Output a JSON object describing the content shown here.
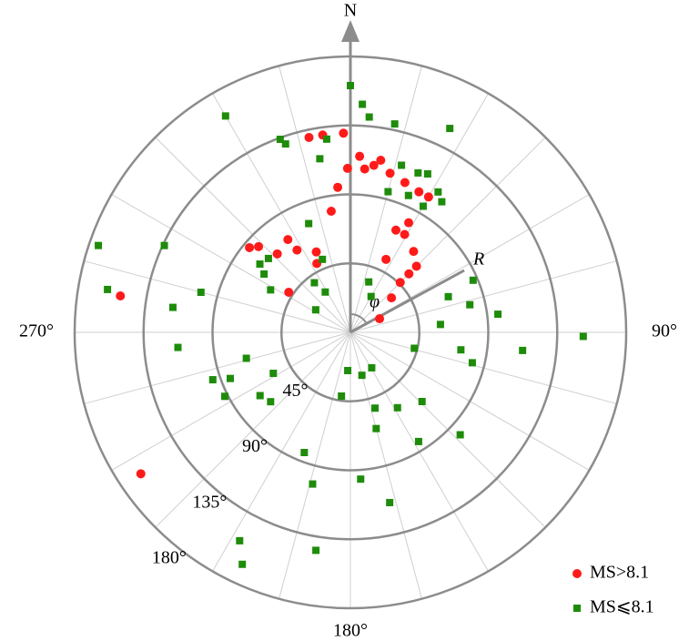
{
  "chart_data": {
    "type": "polar-scatter",
    "rlim": [
      0,
      180
    ],
    "rticks": [
      {
        "value": 45,
        "label": "45°"
      },
      {
        "value": 90,
        "label": "90°"
      },
      {
        "value": 135,
        "label": "135°"
      },
      {
        "value": 180,
        "label": "180°"
      }
    ],
    "thetaticks": [
      {
        "value": 0,
        "label": "N"
      },
      {
        "value": 90,
        "label": "90°"
      },
      {
        "value": 180,
        "label": "180°"
      },
      {
        "value": 270,
        "label": "270°"
      }
    ],
    "annotations": [
      "R",
      "φ"
    ],
    "legend": "bottom-right",
    "series": [
      {
        "name": "MS>8.1",
        "color": "#ff1a1a",
        "marker": "circle",
        "theta": [
          279,
          236,
          348,
          352,
          358,
          3,
          8,
          14,
          20,
          26,
          30,
          5,
          10,
          359,
          355,
          351,
          24,
          28,
          29,
          38,
          45,
          45,
          26,
          45,
          50,
          65,
          326,
          327,
          337,
          334,
          317,
          310,
          313,
          303
        ],
        "r": [
          152,
          165,
          130,
          130,
          130,
          115,
          110,
          107,
          104,
          102,
          102,
          107,
          114,
          107,
          95,
          80,
          73,
          81,
          73,
          67,
          61,
          54,
          53,
          46,
          35,
          21,
          73,
          64,
          57,
          50,
          70,
          86,
          82,
          48
        ]
      },
      {
        "name": "MS⩽8.1",
        "color": "#1e8c0a",
        "marker": "square",
        "theta": [
          0,
          3,
          5,
          12,
          26,
          330,
          340,
          341,
          353,
          350,
          289,
          295,
          280,
          285,
          278,
          265,
          251,
          256,
          249,
          243,
          235,
          229,
          242,
          201,
          194,
          176,
          167,
          189,
          208,
          205,
          188,
          184,
          165,
          149,
          162,
          165,
          148,
          134,
          148,
          133,
          99,
          104,
          96,
          91,
          83,
          77,
          85,
          104,
          70,
          67,
          20,
          30,
          328,
          303,
          324,
          339,
          339,
          298,
          304,
          312,
          307,
          26,
          32,
          35,
          23,
          30,
          17,
          23,
          15
        ],
        "r": [
          161,
          149,
          141,
          139,
          148,
          163,
          134,
          130,
          127,
          115,
          174,
          134,
          161,
          101,
          117,
          113,
          95,
          70,
          84,
          92,
          72,
          69,
          57,
          84,
          102,
          96,
          114,
          144,
          154,
          167,
          42,
          25,
          29,
          27,
          52,
          65,
          58,
          65,
          84,
          98,
          73,
          82,
          113,
          152,
          97,
          80,
          59,
          43,
          68,
          87,
          35,
          27,
          31,
          27,
          40,
          51,
          76,
          59,
          68,
          72,
          74,
          115,
          108,
          104,
          113,
          95,
          114,
          97,
          95
        ]
      }
    ]
  }
}
